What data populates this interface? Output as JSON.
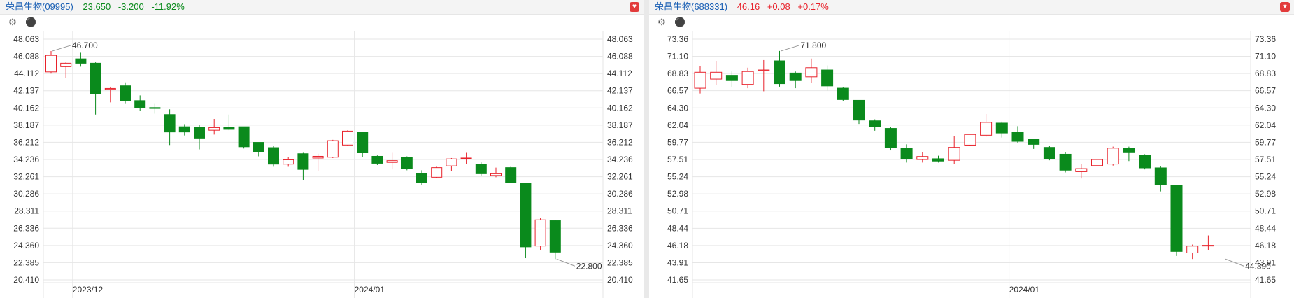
{
  "colors": {
    "up": "#e8222b",
    "down": "#0a8a1c",
    "grid": "#e6e6e6",
    "axis_text": "#333333",
    "name": "#1a5fb4"
  },
  "panels": [
    {
      "name": "荣昌生物(09995)",
      "price": "23.650",
      "change": "-3.200",
      "change_pct": "-11.92%",
      "quote_color": "#0a8a1c",
      "favorite_icon": "heart-icon",
      "toolbar": [
        "gear-icon",
        "circle-up-icon"
      ]
    },
    {
      "name": "荣昌生物(688331)",
      "price": "46.16",
      "change": "+0.08",
      "change_pct": "+0.17%",
      "quote_color": "#e8222b",
      "favorite_icon": "heart-icon",
      "toolbar": [
        "gear-icon",
        "circle-up-icon"
      ]
    }
  ],
  "chart_data": [
    {
      "type": "candlestick",
      "title": "荣昌生物(09995)",
      "ylim": [
        20.41,
        48.063
      ],
      "y_ticks": [
        "48.063",
        "46.088",
        "44.112",
        "42.137",
        "40.162",
        "38.187",
        "36.212",
        "34.236",
        "32.261",
        "30.286",
        "28.311",
        "26.336",
        "24.360",
        "22.385",
        "20.410"
      ],
      "x_labels": [
        {
          "label": "2023/12",
          "index": 2
        },
        {
          "label": "2024/01",
          "index": 21
        }
      ],
      "annotations": [
        {
          "text": "46.700",
          "index": 0,
          "value": 46.7,
          "side": "high"
        },
        {
          "text": "22.800",
          "index": 34,
          "value": 22.8,
          "side": "low"
        }
      ],
      "candles": [
        {
          "o": 44.3,
          "h": 46.7,
          "l": 44.1,
          "c": 46.2
        },
        {
          "o": 44.9,
          "h": 45.4,
          "l": 43.6,
          "c": 45.3
        },
        {
          "o": 45.8,
          "h": 46.5,
          "l": 44.9,
          "c": 45.3
        },
        {
          "o": 45.3,
          "h": 45.4,
          "l": 39.4,
          "c": 41.8
        },
        {
          "o": 42.3,
          "h": 42.6,
          "l": 40.8,
          "c": 42.4
        },
        {
          "o": 42.7,
          "h": 43.1,
          "l": 40.7,
          "c": 41.0
        },
        {
          "o": 41.0,
          "h": 41.6,
          "l": 39.8,
          "c": 40.2
        },
        {
          "o": 40.2,
          "h": 40.7,
          "l": 39.5,
          "c": 40.1
        },
        {
          "o": 39.4,
          "h": 40.0,
          "l": 35.9,
          "c": 37.4
        },
        {
          "o": 38.0,
          "h": 38.3,
          "l": 37.0,
          "c": 37.4
        },
        {
          "o": 37.9,
          "h": 38.2,
          "l": 35.4,
          "c": 36.7
        },
        {
          "o": 37.6,
          "h": 38.9,
          "l": 37.1,
          "c": 37.9
        },
        {
          "o": 37.9,
          "h": 39.4,
          "l": 37.6,
          "c": 37.7
        },
        {
          "o": 38.0,
          "h": 38.0,
          "l": 35.5,
          "c": 35.7
        },
        {
          "o": 36.2,
          "h": 36.2,
          "l": 34.6,
          "c": 35.1
        },
        {
          "o": 35.6,
          "h": 35.8,
          "l": 33.4,
          "c": 33.7
        },
        {
          "o": 33.7,
          "h": 34.5,
          "l": 33.4,
          "c": 34.2
        },
        {
          "o": 34.9,
          "h": 35.0,
          "l": 31.9,
          "c": 33.1
        },
        {
          "o": 34.4,
          "h": 34.9,
          "l": 32.9,
          "c": 34.6
        },
        {
          "o": 34.5,
          "h": 36.5,
          "l": 34.4,
          "c": 36.4
        },
        {
          "o": 35.9,
          "h": 37.6,
          "l": 35.8,
          "c": 37.5
        },
        {
          "o": 37.4,
          "h": 37.4,
          "l": 34.5,
          "c": 35.0
        },
        {
          "o": 34.6,
          "h": 34.7,
          "l": 33.6,
          "c": 33.8
        },
        {
          "o": 33.9,
          "h": 35.0,
          "l": 33.1,
          "c": 34.1
        },
        {
          "o": 34.5,
          "h": 34.6,
          "l": 33.0,
          "c": 33.2
        },
        {
          "o": 32.6,
          "h": 33.0,
          "l": 31.3,
          "c": 31.6
        },
        {
          "o": 32.2,
          "h": 33.4,
          "l": 32.1,
          "c": 33.3
        },
        {
          "o": 33.5,
          "h": 34.4,
          "l": 32.9,
          "c": 34.3
        },
        {
          "o": 34.4,
          "h": 35.0,
          "l": 33.7,
          "c": 34.4
        },
        {
          "o": 33.7,
          "h": 33.9,
          "l": 32.4,
          "c": 32.6
        },
        {
          "o": 32.4,
          "h": 33.3,
          "l": 32.2,
          "c": 32.6
        },
        {
          "o": 33.3,
          "h": 33.4,
          "l": 31.6,
          "c": 31.6
        },
        {
          "o": 31.5,
          "h": 31.5,
          "l": 22.9,
          "c": 24.2
        },
        {
          "o": 24.3,
          "h": 27.5,
          "l": 23.8,
          "c": 27.3
        },
        {
          "o": 27.2,
          "h": 27.3,
          "l": 22.8,
          "c": 23.6
        }
      ]
    },
    {
      "type": "candlestick",
      "title": "荣昌生物(688331)",
      "ylim": [
        41.65,
        73.36
      ],
      "y_ticks": [
        "73.36",
        "71.10",
        "68.83",
        "66.57",
        "64.30",
        "62.04",
        "59.77",
        "57.51",
        "55.24",
        "52.98",
        "50.71",
        "48.44",
        "46.18",
        "43.91",
        "41.65"
      ],
      "x_labels": [
        {
          "label": "2024/01",
          "index": 20
        }
      ],
      "annotations": [
        {
          "text": "71.800",
          "index": 5,
          "value": 71.8,
          "side": "high"
        },
        {
          "text": "44.390",
          "index": 33,
          "value": 44.39,
          "side": "low"
        }
      ],
      "candles": [
        {
          "o": 66.9,
          "h": 69.8,
          "l": 66.2,
          "c": 69.0
        },
        {
          "o": 68.1,
          "h": 70.5,
          "l": 67.3,
          "c": 69.0
        },
        {
          "o": 68.6,
          "h": 69.1,
          "l": 67.1,
          "c": 67.9
        },
        {
          "o": 67.4,
          "h": 69.6,
          "l": 66.9,
          "c": 69.1
        },
        {
          "o": 69.2,
          "h": 70.6,
          "l": 66.5,
          "c": 69.3
        },
        {
          "o": 70.5,
          "h": 71.8,
          "l": 67.1,
          "c": 67.5
        },
        {
          "o": 68.9,
          "h": 69.1,
          "l": 66.9,
          "c": 67.9
        },
        {
          "o": 68.4,
          "h": 70.8,
          "l": 67.6,
          "c": 69.6
        },
        {
          "o": 69.3,
          "h": 69.9,
          "l": 66.6,
          "c": 67.2
        },
        {
          "o": 66.9,
          "h": 67.0,
          "l": 65.2,
          "c": 65.4
        },
        {
          "o": 65.3,
          "h": 65.3,
          "l": 62.2,
          "c": 62.7
        },
        {
          "o": 62.6,
          "h": 62.8,
          "l": 61.3,
          "c": 61.8
        },
        {
          "o": 61.6,
          "h": 61.8,
          "l": 58.7,
          "c": 59.1
        },
        {
          "o": 59.0,
          "h": 59.5,
          "l": 57.1,
          "c": 57.6
        },
        {
          "o": 57.5,
          "h": 58.5,
          "l": 57.1,
          "c": 57.9
        },
        {
          "o": 57.6,
          "h": 58.0,
          "l": 57.1,
          "c": 57.3
        },
        {
          "o": 57.4,
          "h": 60.6,
          "l": 56.9,
          "c": 59.1
        },
        {
          "o": 59.4,
          "h": 60.8,
          "l": 59.3,
          "c": 60.8
        },
        {
          "o": 60.7,
          "h": 63.5,
          "l": 60.5,
          "c": 62.4
        },
        {
          "o": 62.3,
          "h": 62.5,
          "l": 60.4,
          "c": 61.0
        },
        {
          "o": 61.1,
          "h": 61.9,
          "l": 59.7,
          "c": 59.9
        },
        {
          "o": 60.2,
          "h": 60.2,
          "l": 58.9,
          "c": 59.5
        },
        {
          "o": 59.1,
          "h": 59.3,
          "l": 57.4,
          "c": 57.6
        },
        {
          "o": 58.2,
          "h": 58.5,
          "l": 55.8,
          "c": 56.1
        },
        {
          "o": 55.9,
          "h": 56.9,
          "l": 55.0,
          "c": 56.3
        },
        {
          "o": 56.7,
          "h": 58.0,
          "l": 56.2,
          "c": 57.5
        },
        {
          "o": 56.9,
          "h": 59.2,
          "l": 56.7,
          "c": 59.0
        },
        {
          "o": 59.0,
          "h": 59.2,
          "l": 57.3,
          "c": 58.4
        },
        {
          "o": 58.1,
          "h": 58.2,
          "l": 56.2,
          "c": 56.4
        },
        {
          "o": 56.4,
          "h": 56.6,
          "l": 53.3,
          "c": 54.2
        },
        {
          "o": 54.1,
          "h": 54.1,
          "l": 44.8,
          "c": 45.4
        },
        {
          "o": 45.2,
          "h": 46.3,
          "l": 44.4,
          "c": 46.1
        },
        {
          "o": 46.2,
          "h": 47.5,
          "l": 45.6,
          "c": 46.2
        }
      ]
    }
  ]
}
